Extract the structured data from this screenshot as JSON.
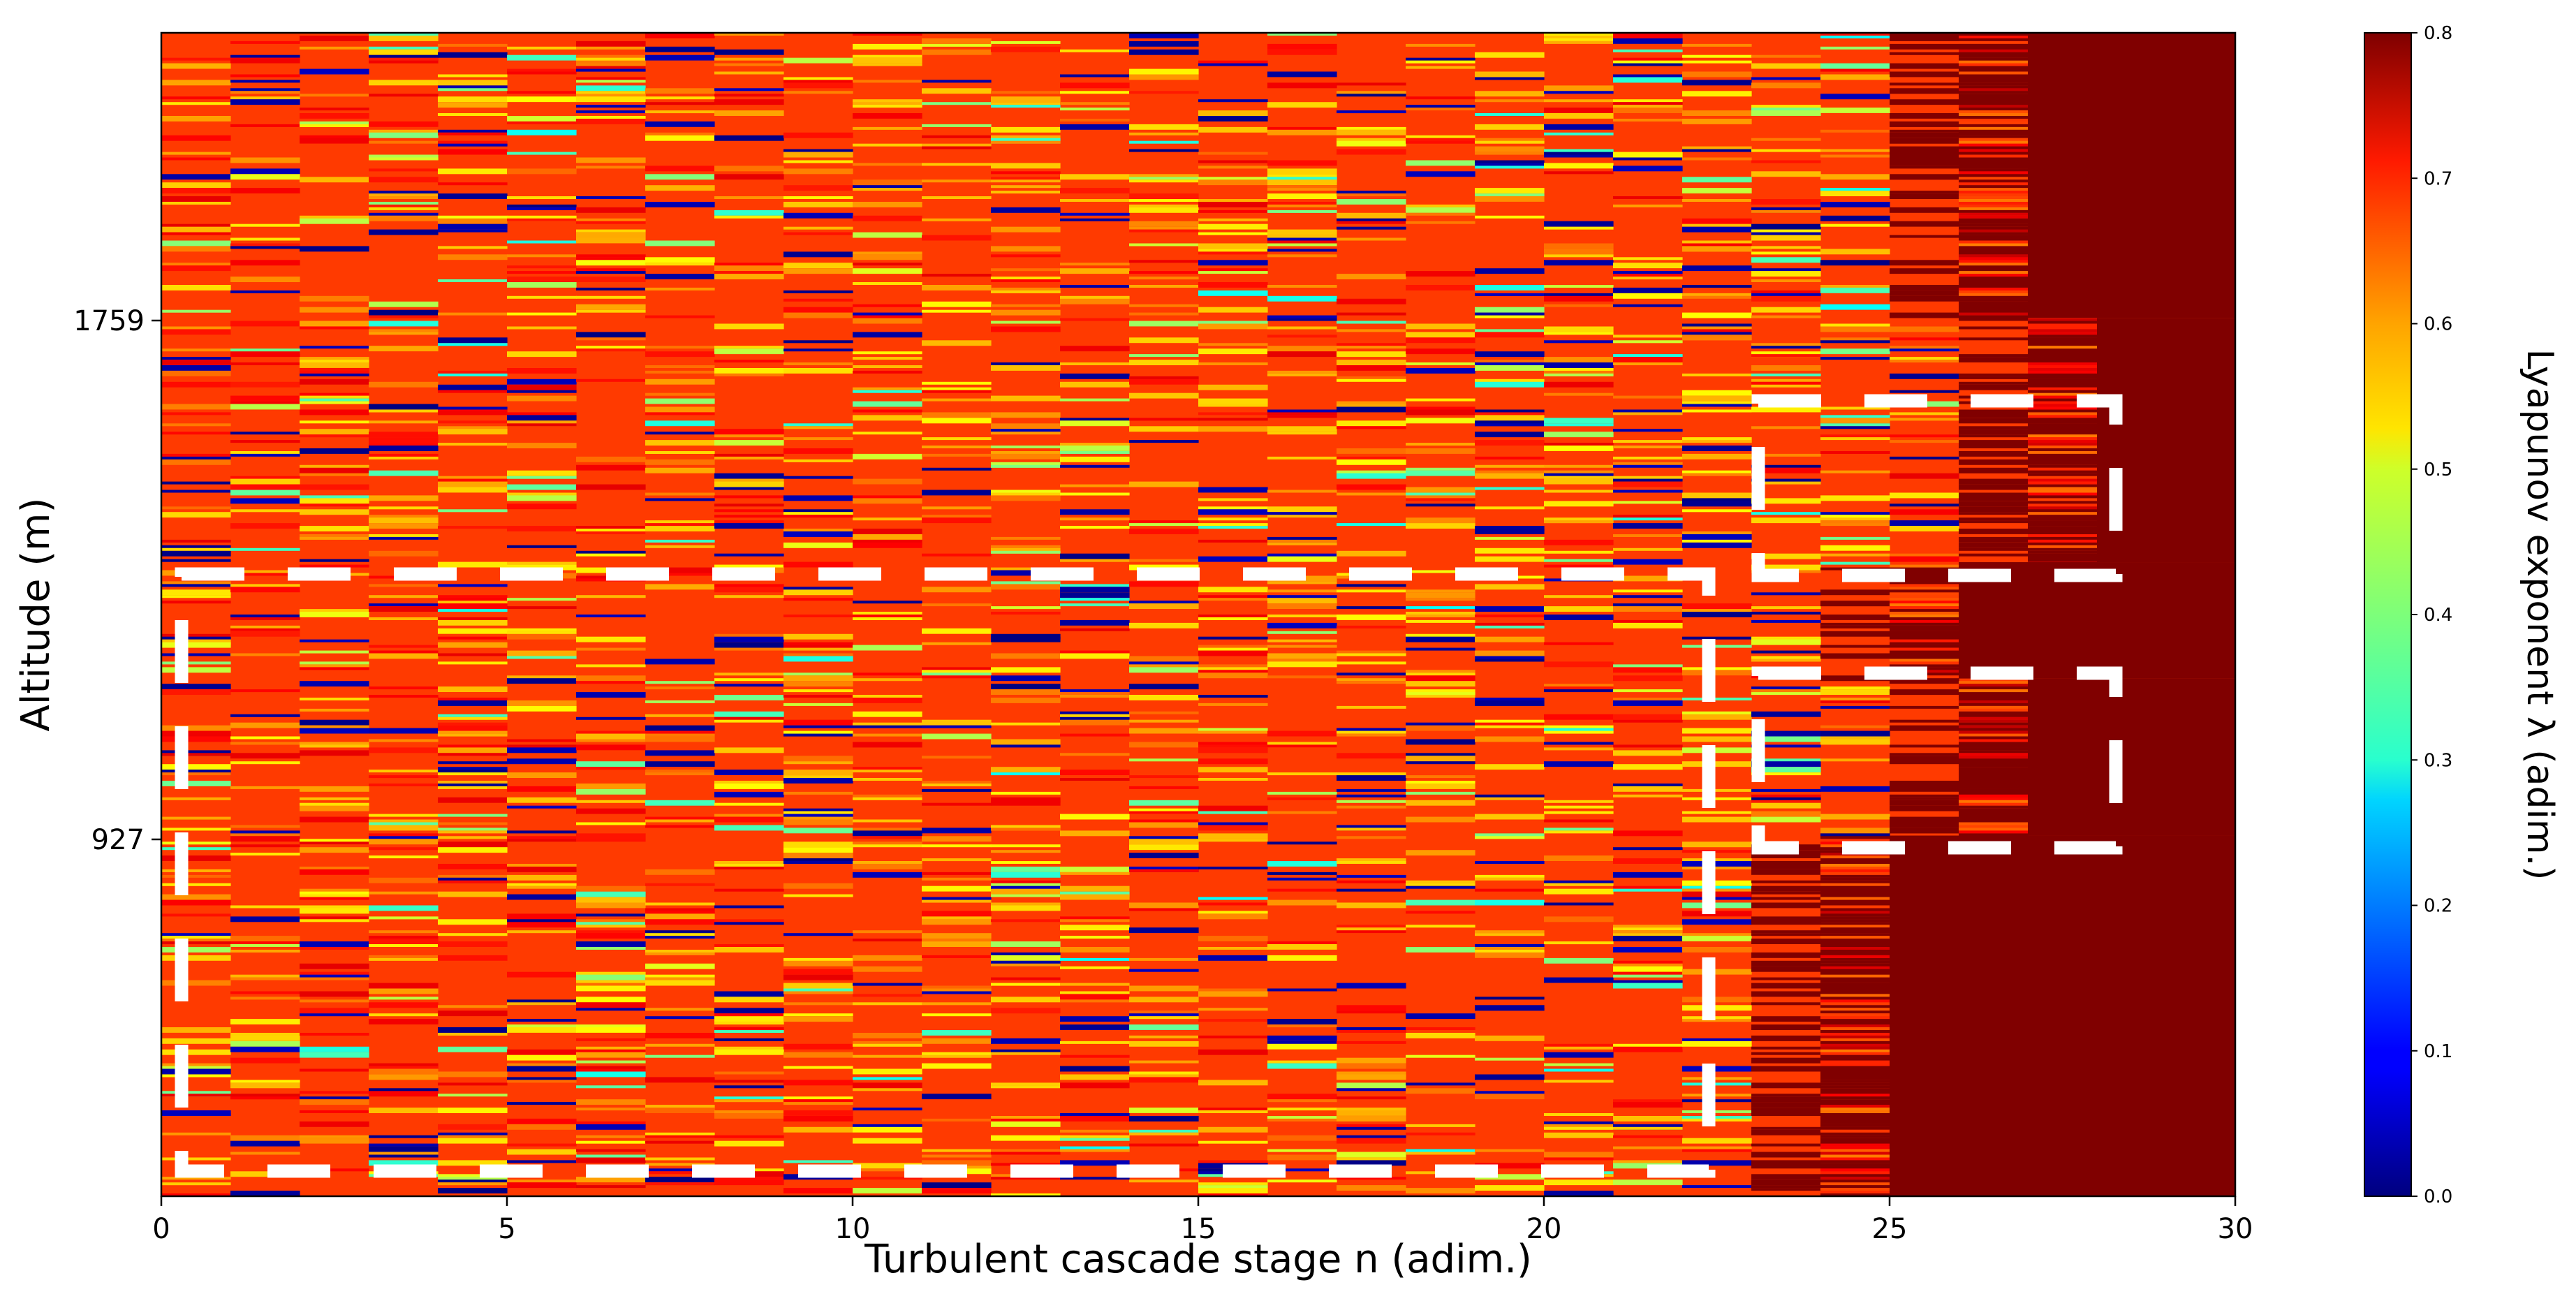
{
  "chart_data": {
    "type": "heatmap",
    "title": "",
    "xlabel": "Turbulent cascade stage n (adim.)",
    "ylabel": "Altitude (m)",
    "xlim": [
      0,
      30
    ],
    "x_ticks": [
      0,
      5,
      10,
      15,
      20,
      25,
      30
    ],
    "y_ticks": [
      1759,
      927
    ],
    "grid": false,
    "colormap": "jet",
    "colorbar": {
      "label": "Lyapunov exponent λ (adim.)",
      "range": [
        0.0,
        0.8
      ],
      "ticks": [
        "0.0",
        "0.1",
        "0.2",
        "0.3",
        "0.4",
        "0.5",
        "0.6",
        "0.7",
        "0.8"
      ]
    },
    "columns_n": 30,
    "typical_value": 0.65,
    "max_value": 0.8,
    "saturation_onset": [
      {
        "from_fraction_of_height": 0.0,
        "to_fraction_of_height": 0.245,
        "n": 26
      },
      {
        "from_fraction_of_height": 0.245,
        "to_fraction_of_height": 0.455,
        "n": 27
      },
      {
        "from_fraction_of_height": 0.455,
        "to_fraction_of_height": 0.555,
        "n": 25
      },
      {
        "from_fraction_of_height": 0.555,
        "to_fraction_of_height": 0.69,
        "n": 26
      },
      {
        "from_fraction_of_height": 0.69,
        "to_fraction_of_height": 1.0,
        "n": 24
      }
    ],
    "annotations": [
      {
        "type": "dashed-rectangle",
        "n_range": [
          0.3,
          22.5
        ],
        "color": "#ffffff"
      },
      {
        "type": "dashed-rectangle",
        "n_range": [
          23.0,
          28.2
        ],
        "color": "#ffffff"
      },
      {
        "type": "dashed-rectangle",
        "n_range": [
          23.0,
          28.2
        ],
        "color": "#ffffff"
      }
    ]
  }
}
